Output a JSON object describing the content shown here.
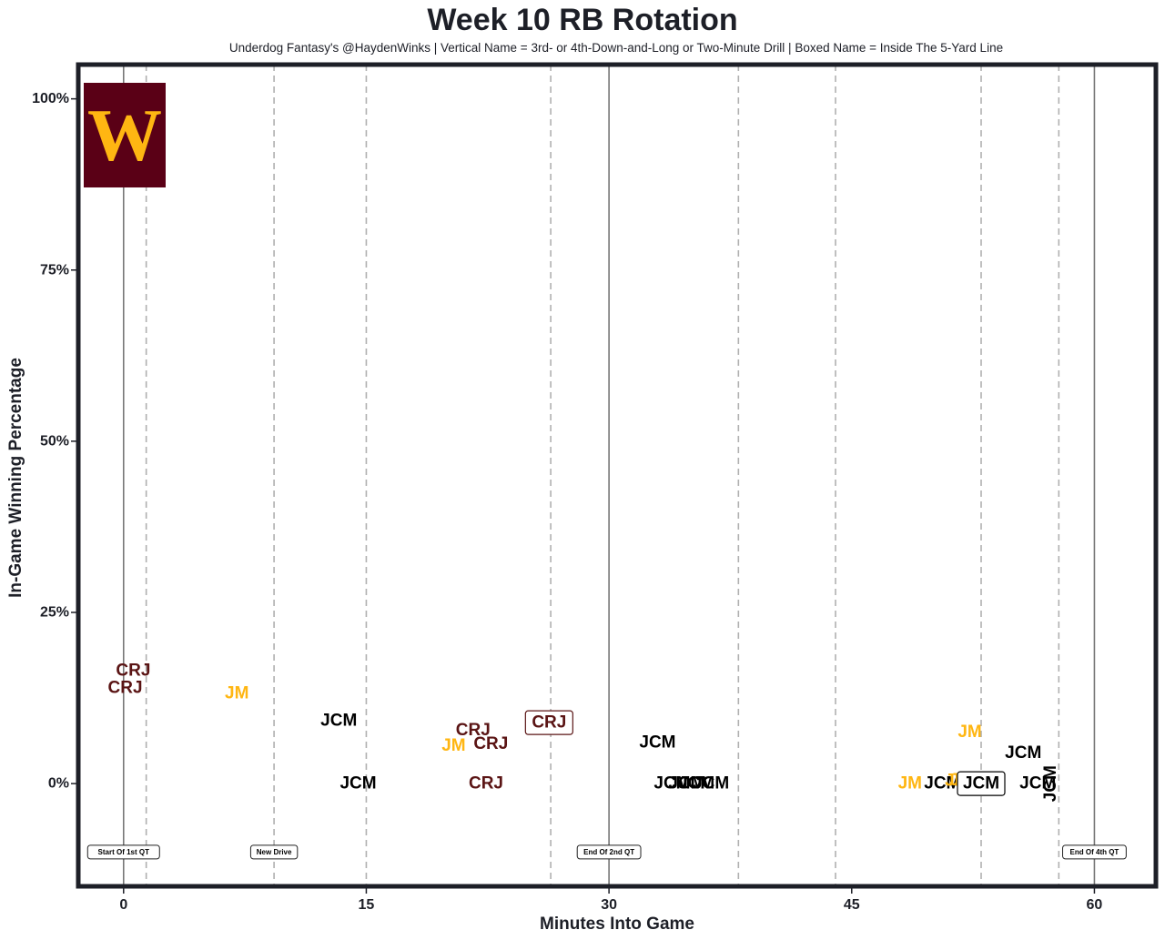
{
  "title": "Week 10 RB Rotation",
  "subtitle": "Underdog Fantasy's @HaydenWinks | Vertical Name = 3rd- or 4th-Down-and-Long or Two-Minute Drill | Boxed Name = Inside The 5-Yard Line",
  "colors": {
    "CRJ": "#5a1414",
    "JM": "#ffb612",
    "JCM": "#000000",
    "frame": "#1d1f27",
    "logo_bg": "#5a0016",
    "logo_fg": "#ffb612"
  },
  "logo": {
    "icon": "washington-commanders-logo",
    "letter": "W"
  },
  "chart_data": {
    "type": "scatter",
    "title": "Week 10 RB Rotation",
    "xlabel": "Minutes Into Game",
    "ylabel": "In-Game Winning Percentage",
    "xlim": [
      -2.8,
      63.8
    ],
    "ylim": [
      -15,
      105
    ],
    "x_ticks": [
      0,
      15,
      30,
      45,
      60
    ],
    "y_ticks": [
      0,
      25,
      50,
      75,
      100
    ],
    "y_tick_labels": [
      "0%",
      "25%",
      "50%",
      "75%",
      "100%"
    ],
    "grid": false,
    "quarter_lines": [
      0,
      30,
      60
    ],
    "drive_lines": [
      1.4,
      9.3,
      15.0,
      26.4,
      38.0,
      44.0,
      53.0,
      57.8
    ],
    "annotations": [
      {
        "x": 0,
        "y": -10,
        "text": "Start Of 1st QT"
      },
      {
        "x": 9.3,
        "y": -10,
        "text": "New Drive"
      },
      {
        "x": 30,
        "y": -10,
        "text": "End Of 2nd QT"
      },
      {
        "x": 60,
        "y": -10,
        "text": "End Of 4th QT"
      }
    ],
    "points": [
      {
        "x": 0.6,
        "y": 16.5,
        "player": "CRJ"
      },
      {
        "x": 0.1,
        "y": 14.0,
        "player": "CRJ"
      },
      {
        "x": 7.0,
        "y": 13.2,
        "player": "JM"
      },
      {
        "x": 13.3,
        "y": 9.2,
        "player": "JCM"
      },
      {
        "x": 14.5,
        "y": 0,
        "player": "JCM"
      },
      {
        "x": 21.6,
        "y": 7.8,
        "player": "CRJ"
      },
      {
        "x": 20.4,
        "y": 5.5,
        "player": "JM"
      },
      {
        "x": 22.7,
        "y": 5.8,
        "player": "CRJ"
      },
      {
        "x": 22.4,
        "y": 0,
        "player": "CRJ"
      },
      {
        "x": 26.3,
        "y": 8.9,
        "player": "CRJ",
        "boxed": true
      },
      {
        "x": 33.0,
        "y": 6.0,
        "player": "JCM"
      },
      {
        "x": 33.9,
        "y": 0,
        "player": "JCM"
      },
      {
        "x": 34.8,
        "y": 0,
        "player": "JCM"
      },
      {
        "x": 35.4,
        "y": 0,
        "player": "JCM"
      },
      {
        "x": 36.3,
        "y": 0,
        "player": "JCM"
      },
      {
        "x": 48.6,
        "y": 0,
        "player": "JM"
      },
      {
        "x": 50.6,
        "y": 0,
        "player": "JCM"
      },
      {
        "x": 51.5,
        "y": 0.4,
        "player": "JM"
      },
      {
        "x": 51.8,
        "y": 0.5,
        "player": "JM"
      },
      {
        "x": 52.3,
        "y": 7.5,
        "player": "JM"
      },
      {
        "x": 53.0,
        "y": 0,
        "player": "JCM",
        "boxed": true
      },
      {
        "x": 55.6,
        "y": 4.5,
        "player": "JCM"
      },
      {
        "x": 56.5,
        "y": 0,
        "player": "JCM"
      },
      {
        "x": 57.3,
        "y": 0,
        "player": "JCM",
        "vertical": true
      }
    ]
  }
}
